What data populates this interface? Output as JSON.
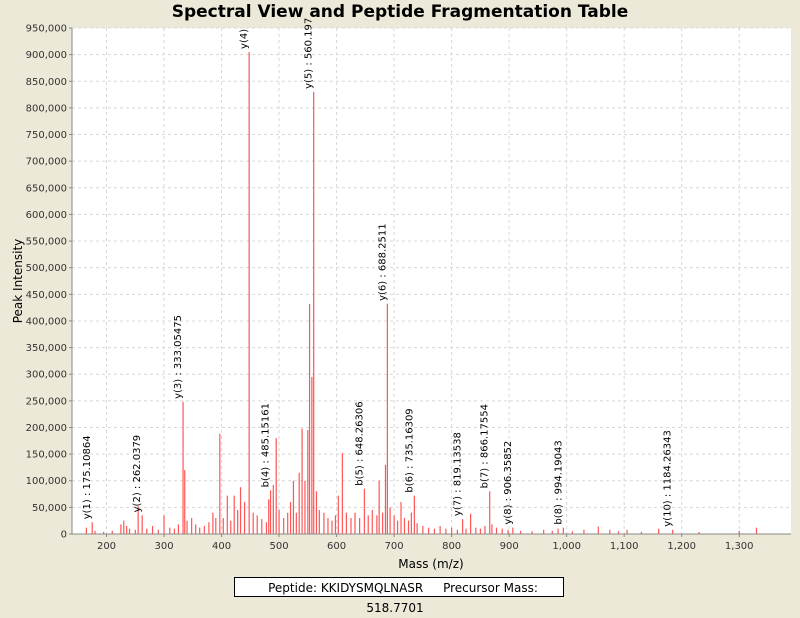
{
  "chart_data": {
    "type": "bar",
    "title": "Spectral View and Peptide Fragmentation Table",
    "xlabel": "Mass (m/z)",
    "ylabel": "Peak Intensity",
    "xlim": [
      140,
      1390
    ],
    "ylim": [
      0,
      950000
    ],
    "xticks": [
      200,
      300,
      400,
      500,
      600,
      700,
      800,
      900,
      1000,
      1100,
      1200,
      1300
    ],
    "xtick_labels": [
      "200",
      "300",
      "400",
      "500",
      "600",
      "700",
      "800",
      "900",
      "1,000",
      "1,100",
      "1,200",
      "1,300"
    ],
    "yticks": [
      0,
      50000,
      100000,
      150000,
      200000,
      250000,
      300000,
      350000,
      400000,
      450000,
      500000,
      550000,
      600000,
      650000,
      700000,
      750000,
      800000,
      850000,
      900000,
      950000
    ],
    "ytick_labels": [
      "0",
      "50,000",
      "100,000",
      "150,000",
      "200,000",
      "250,000",
      "300,000",
      "350,000",
      "400,000",
      "450,000",
      "500,000",
      "550,000",
      "600,000",
      "650,000",
      "700,000",
      "750,000",
      "800,000",
      "850,000",
      "900,000",
      "950,000"
    ],
    "grid": true,
    "peak_color": "#ff5555",
    "peaks": [
      {
        "x": 165,
        "y": 12000
      },
      {
        "x": 175.1,
        "y": 22000
      },
      {
        "x": 180,
        "y": 6000
      },
      {
        "x": 195,
        "y": 4000
      },
      {
        "x": 210,
        "y": 6000
      },
      {
        "x": 225,
        "y": 18000
      },
      {
        "x": 230,
        "y": 25000
      },
      {
        "x": 235,
        "y": 15000
      },
      {
        "x": 240,
        "y": 10000
      },
      {
        "x": 250,
        "y": 8000
      },
      {
        "x": 255,
        "y": 52000
      },
      {
        "x": 262,
        "y": 35000
      },
      {
        "x": 270,
        "y": 10000
      },
      {
        "x": 280,
        "y": 15000
      },
      {
        "x": 290,
        "y": 8000
      },
      {
        "x": 300,
        "y": 35000
      },
      {
        "x": 310,
        "y": 12000
      },
      {
        "x": 318,
        "y": 10000
      },
      {
        "x": 325,
        "y": 18000
      },
      {
        "x": 333.05,
        "y": 248000
      },
      {
        "x": 336,
        "y": 120000
      },
      {
        "x": 340,
        "y": 25000
      },
      {
        "x": 348,
        "y": 30000
      },
      {
        "x": 355,
        "y": 18000
      },
      {
        "x": 362,
        "y": 12000
      },
      {
        "x": 370,
        "y": 15000
      },
      {
        "x": 378,
        "y": 22000
      },
      {
        "x": 385,
        "y": 40000
      },
      {
        "x": 390,
        "y": 30000
      },
      {
        "x": 397,
        "y": 188000
      },
      {
        "x": 403,
        "y": 30000
      },
      {
        "x": 410,
        "y": 72000
      },
      {
        "x": 416,
        "y": 25000
      },
      {
        "x": 422,
        "y": 72000
      },
      {
        "x": 428,
        "y": 45000
      },
      {
        "x": 433,
        "y": 88000
      },
      {
        "x": 440,
        "y": 60000
      },
      {
        "x": 448,
        "y": 905000
      },
      {
        "x": 455,
        "y": 40000
      },
      {
        "x": 462,
        "y": 35000
      },
      {
        "x": 470,
        "y": 28000
      },
      {
        "x": 478,
        "y": 22000
      },
      {
        "x": 482,
        "y": 65000
      },
      {
        "x": 485.2,
        "y": 82000
      },
      {
        "x": 490,
        "y": 92000
      },
      {
        "x": 495,
        "y": 180000
      },
      {
        "x": 500,
        "y": 45000
      },
      {
        "x": 508,
        "y": 30000
      },
      {
        "x": 515,
        "y": 40000
      },
      {
        "x": 520,
        "y": 60000
      },
      {
        "x": 525,
        "y": 100000
      },
      {
        "x": 530,
        "y": 40000
      },
      {
        "x": 535,
        "y": 115000
      },
      {
        "x": 540,
        "y": 198000
      },
      {
        "x": 545,
        "y": 100000
      },
      {
        "x": 550,
        "y": 195000
      },
      {
        "x": 553,
        "y": 432000
      },
      {
        "x": 557,
        "y": 295000
      },
      {
        "x": 560.2,
        "y": 830000
      },
      {
        "x": 565,
        "y": 80000
      },
      {
        "x": 570,
        "y": 45000
      },
      {
        "x": 578,
        "y": 40000
      },
      {
        "x": 585,
        "y": 30000
      },
      {
        "x": 592,
        "y": 25000
      },
      {
        "x": 598,
        "y": 35000
      },
      {
        "x": 603,
        "y": 72000
      },
      {
        "x": 610,
        "y": 152000
      },
      {
        "x": 617,
        "y": 40000
      },
      {
        "x": 625,
        "y": 30000
      },
      {
        "x": 632,
        "y": 40000
      },
      {
        "x": 640,
        "y": 30000
      },
      {
        "x": 648.3,
        "y": 85000
      },
      {
        "x": 655,
        "y": 35000
      },
      {
        "x": 662,
        "y": 45000
      },
      {
        "x": 670,
        "y": 35000
      },
      {
        "x": 674,
        "y": 100000
      },
      {
        "x": 680,
        "y": 40000
      },
      {
        "x": 685,
        "y": 130000
      },
      {
        "x": 688.3,
        "y": 432000
      },
      {
        "x": 693,
        "y": 50000
      },
      {
        "x": 700,
        "y": 35000
      },
      {
        "x": 706,
        "y": 25000
      },
      {
        "x": 712,
        "y": 60000
      },
      {
        "x": 718,
        "y": 30000
      },
      {
        "x": 725,
        "y": 25000
      },
      {
        "x": 730,
        "y": 40000
      },
      {
        "x": 735.2,
        "y": 72000
      },
      {
        "x": 740,
        "y": 20000
      },
      {
        "x": 750,
        "y": 15000
      },
      {
        "x": 760,
        "y": 12000
      },
      {
        "x": 770,
        "y": 10000
      },
      {
        "x": 780,
        "y": 15000
      },
      {
        "x": 790,
        "y": 10000
      },
      {
        "x": 800,
        "y": 12000
      },
      {
        "x": 810,
        "y": 8000
      },
      {
        "x": 819.1,
        "y": 28000
      },
      {
        "x": 825,
        "y": 10000
      },
      {
        "x": 833,
        "y": 38000
      },
      {
        "x": 842,
        "y": 12000
      },
      {
        "x": 850,
        "y": 10000
      },
      {
        "x": 858,
        "y": 15000
      },
      {
        "x": 866.2,
        "y": 80000
      },
      {
        "x": 870,
        "y": 18000
      },
      {
        "x": 878,
        "y": 12000
      },
      {
        "x": 888,
        "y": 10000
      },
      {
        "x": 898,
        "y": 8000
      },
      {
        "x": 906.4,
        "y": 12000
      },
      {
        "x": 920,
        "y": 6000
      },
      {
        "x": 940,
        "y": 5000
      },
      {
        "x": 960,
        "y": 8000
      },
      {
        "x": 975,
        "y": 6000
      },
      {
        "x": 985,
        "y": 10000
      },
      {
        "x": 994.2,
        "y": 12000
      },
      {
        "x": 1010,
        "y": 5000
      },
      {
        "x": 1030,
        "y": 8000
      },
      {
        "x": 1055,
        "y": 14000
      },
      {
        "x": 1075,
        "y": 8000
      },
      {
        "x": 1090,
        "y": 5000
      },
      {
        "x": 1105,
        "y": 8000
      },
      {
        "x": 1130,
        "y": 4000
      },
      {
        "x": 1160,
        "y": 10000
      },
      {
        "x": 1184.3,
        "y": 8000
      },
      {
        "x": 1230,
        "y": 4000
      },
      {
        "x": 1300,
        "y": 6000
      },
      {
        "x": 1330,
        "y": 12000
      }
    ],
    "annotations": [
      {
        "label": "y(1) : 175.10864",
        "x": 175.1,
        "y": 22000
      },
      {
        "label": "y(2) : 262.0379",
        "x": 262,
        "y": 35000
      },
      {
        "label": "y(3) : 333.05475",
        "x": 333.05,
        "y": 248000
      },
      {
        "label": "y(4)",
        "x": 448,
        "y": 905000
      },
      {
        "label": "b(4) : 485.15161",
        "x": 485.2,
        "y": 82000
      },
      {
        "label": "y(5) : 560.197",
        "x": 560.2,
        "y": 830000
      },
      {
        "label": "b(5) : 648.26306",
        "x": 648.3,
        "y": 85000
      },
      {
        "label": "y(6) : 688.2511",
        "x": 688.3,
        "y": 432000
      },
      {
        "label": "b(6) : 735.16309",
        "x": 735.2,
        "y": 72000
      },
      {
        "label": "y(7) : 819.13538",
        "x": 819.1,
        "y": 28000
      },
      {
        "label": "b(7) : 866.17554",
        "x": 866.2,
        "y": 80000
      },
      {
        "label": "y(8) : 906.35852",
        "x": 906.4,
        "y": 12000
      },
      {
        "label": "b(8) : 994.19043",
        "x": 994.2,
        "y": 12000
      },
      {
        "label": "y(10) : 1184.26343",
        "x": 1184.3,
        "y": 8000
      }
    ]
  },
  "footer": {
    "peptide": "Peptide: KKIDYSMQLNASR",
    "precursor": "Precursor Mass: 518.7701"
  }
}
